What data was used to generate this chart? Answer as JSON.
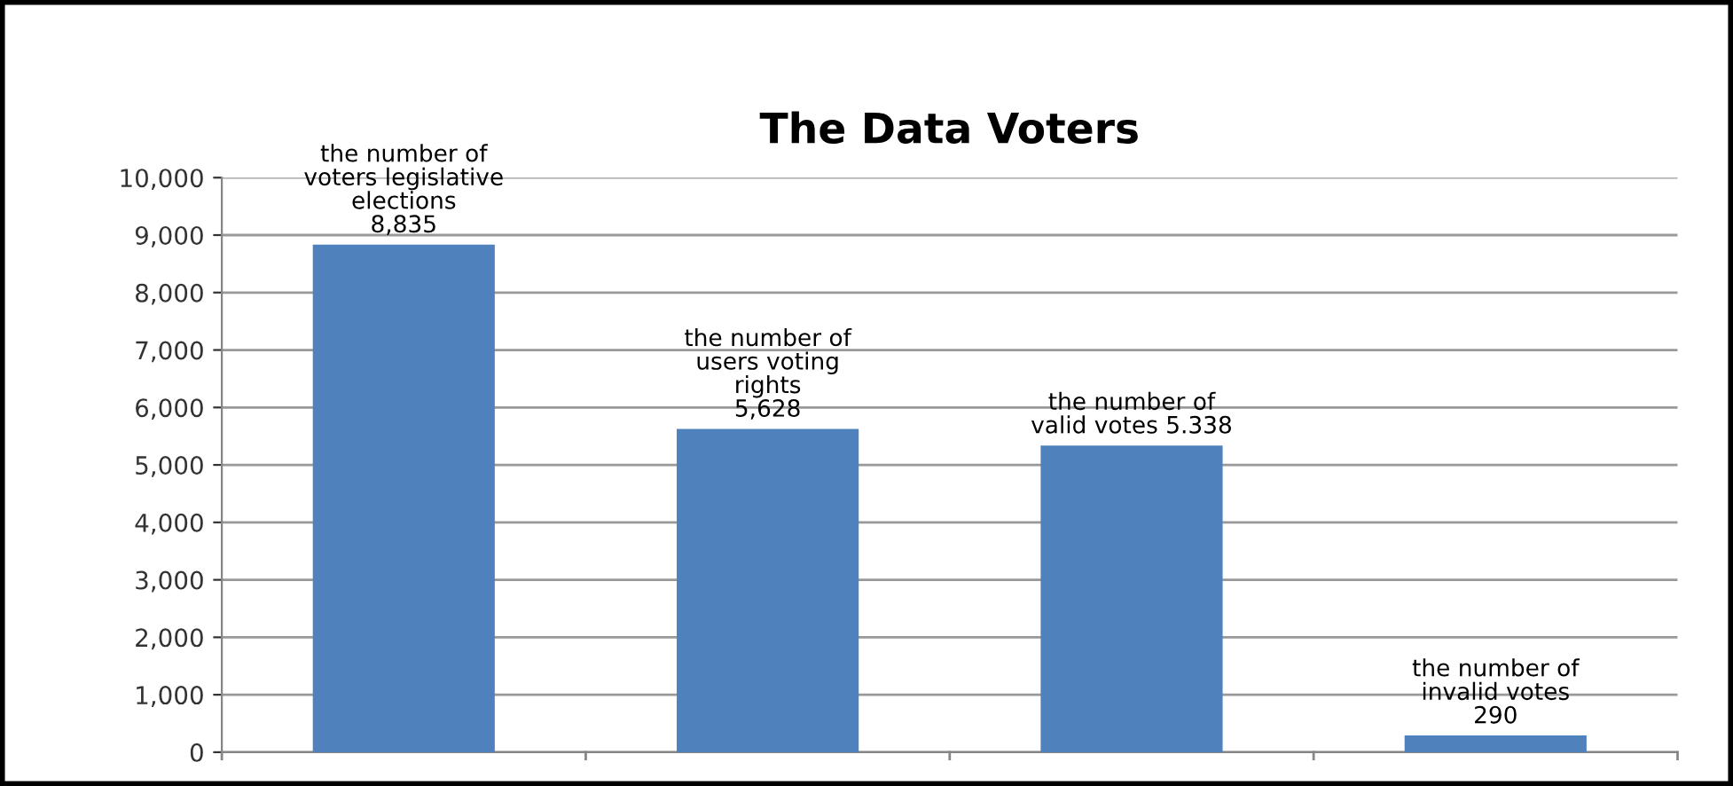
{
  "chart_data": {
    "type": "bar",
    "title": "The Data Voters",
    "categories": [
      null,
      null,
      null,
      null
    ],
    "values": [
      8835,
      5628,
      5338,
      290
    ],
    "value_labels": [
      "the number of\nvoters legislative\nelections\n8,835",
      "the number of\nusers voting\nrights\n5,628",
      "the number of\nvalid votes 5.338",
      "the number of\ninvalid votes\n290"
    ],
    "color": "#4f81bd",
    "ylim": [
      0,
      10000
    ],
    "yticks": [
      {
        "value": 0,
        "label": "0"
      },
      {
        "value": 1000,
        "label": "1,000"
      },
      {
        "value": 2000,
        "label": "2,000"
      },
      {
        "value": 3000,
        "label": "3,000"
      },
      {
        "value": 4000,
        "label": "4,000"
      },
      {
        "value": 5000,
        "label": "5,000"
      },
      {
        "value": 6000,
        "label": "6,000"
      },
      {
        "value": 7000,
        "label": "7,000"
      },
      {
        "value": 8000,
        "label": "8,000"
      },
      {
        "value": 9000,
        "label": "9,000"
      },
      {
        "value": 10000,
        "label": "10,000"
      }
    ],
    "grid": "y",
    "legend": false
  }
}
